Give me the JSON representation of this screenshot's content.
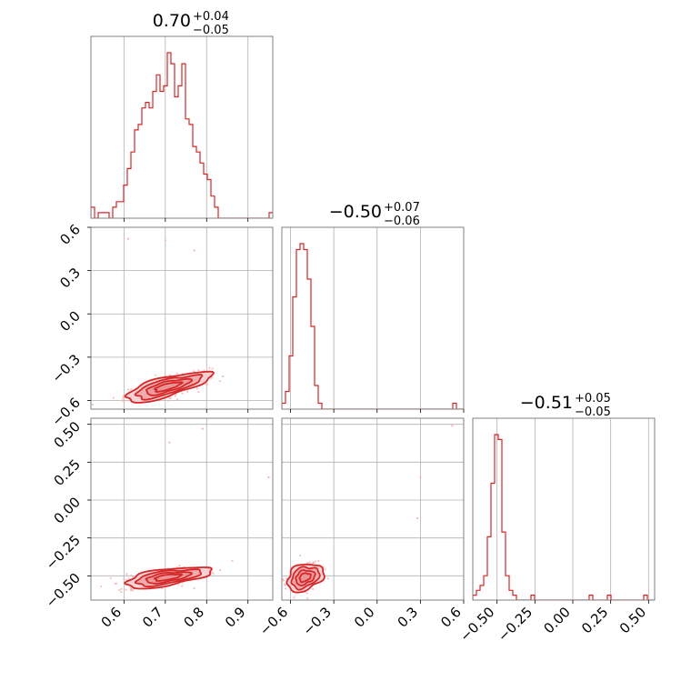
{
  "chart_data": {
    "type": "corner",
    "colors": {
      "main": "#d62728",
      "fill_inner": "#e88e8f",
      "fill_outer": "#f6cfd0",
      "scatter": "#f3b3b4"
    },
    "grid": true,
    "parameters": [
      {
        "range": [
          0.52,
          0.96
        ],
        "ticks": [
          0.6,
          0.7,
          0.8,
          0.9
        ],
        "tick_labels": [
          "0.6",
          "0.7",
          "0.8",
          "0.9"
        ],
        "title": {
          "main": "0.70",
          "upper": "+0.04",
          "lower": "−0.05"
        }
      },
      {
        "range": [
          -0.66,
          0.6
        ],
        "ticks": [
          -0.6,
          -0.3,
          0.0,
          0.3,
          0.6
        ],
        "tick_labels": [
          "−0.6",
          "−0.3",
          "0.0",
          "0.3",
          "0.6"
        ],
        "title": {
          "main": "−0.50",
          "upper": "+0.07",
          "lower": "−0.06"
        }
      },
      {
        "range": [
          -0.66,
          0.54
        ],
        "ticks": [
          -0.5,
          -0.25,
          0.0,
          0.25,
          0.5
        ],
        "tick_labels": [
          "−0.50",
          "−0.25",
          "0.00",
          "0.25",
          "0.50"
        ],
        "title": {
          "main": "−0.51",
          "upper": "+0.05",
          "lower": "−0.05"
        }
      }
    ],
    "histograms": [
      {
        "param": 0,
        "bin_width": 0.0088,
        "counts": [
          2,
          0,
          1,
          1,
          1,
          0,
          2,
          3,
          3,
          6,
          9,
          12,
          16,
          17,
          20,
          21,
          20,
          23,
          26,
          23,
          24,
          30,
          28,
          22,
          24,
          28,
          18,
          17,
          13,
          12,
          10,
          8,
          7,
          4,
          2,
          0,
          0,
          0,
          0,
          0,
          0,
          0,
          0,
          0,
          0,
          0,
          0,
          0,
          0,
          1
        ]
      },
      {
        "param": 1,
        "bin_width": 0.0252,
        "counts": [
          1,
          3,
          9,
          19,
          27,
          28,
          27,
          22,
          14,
          4,
          1,
          0,
          0,
          0,
          0,
          0,
          0,
          0,
          0,
          0,
          0,
          0,
          0,
          0,
          0,
          0,
          0,
          0,
          0,
          0,
          0,
          0,
          0,
          0,
          0,
          0,
          0,
          0,
          0,
          0,
          0,
          0,
          0,
          0,
          0,
          0,
          0,
          1,
          0,
          0
        ]
      },
      {
        "param": 2,
        "bin_width": 0.024,
        "counts": [
          1,
          2,
          3,
          5,
          13,
          24,
          34,
          33,
          14,
          5,
          2,
          1,
          0,
          0,
          0,
          0,
          1,
          0,
          0,
          0,
          0,
          0,
          0,
          0,
          0,
          0,
          0,
          0,
          0,
          0,
          0,
          0,
          1,
          0,
          0,
          0,
          0,
          1,
          0,
          0,
          0,
          0,
          0,
          0,
          0,
          0,
          0,
          1,
          0,
          0
        ]
      }
    ],
    "pairs": [
      {
        "x_param": 0,
        "y_param": 1,
        "center": [
          0.705,
          -0.505
        ],
        "sigma": [
          0.045,
          0.045
        ],
        "rho": 0.75,
        "outliers": [
          [
            0.61,
            0.52
          ],
          [
            0.7,
            0.51
          ],
          [
            0.77,
            0.44
          ]
        ]
      },
      {
        "x_param": 0,
        "y_param": 2,
        "center": [
          0.705,
          -0.51
        ],
        "sigma": [
          0.045,
          0.03
        ],
        "rho": 0.6,
        "outliers": [
          [
            0.71,
            0.38
          ],
          [
            0.79,
            0.47
          ],
          [
            0.95,
            0.15
          ]
        ]
      },
      {
        "x_param": 1,
        "y_param": 2,
        "center": [
          -0.5,
          -0.51
        ],
        "sigma": [
          0.055,
          0.04
        ],
        "rho": 0.3,
        "outliers": [
          [
            0.52,
            0.49
          ],
          [
            0.3,
            0.15
          ],
          [
            0.28,
            -0.12
          ]
        ]
      }
    ]
  }
}
